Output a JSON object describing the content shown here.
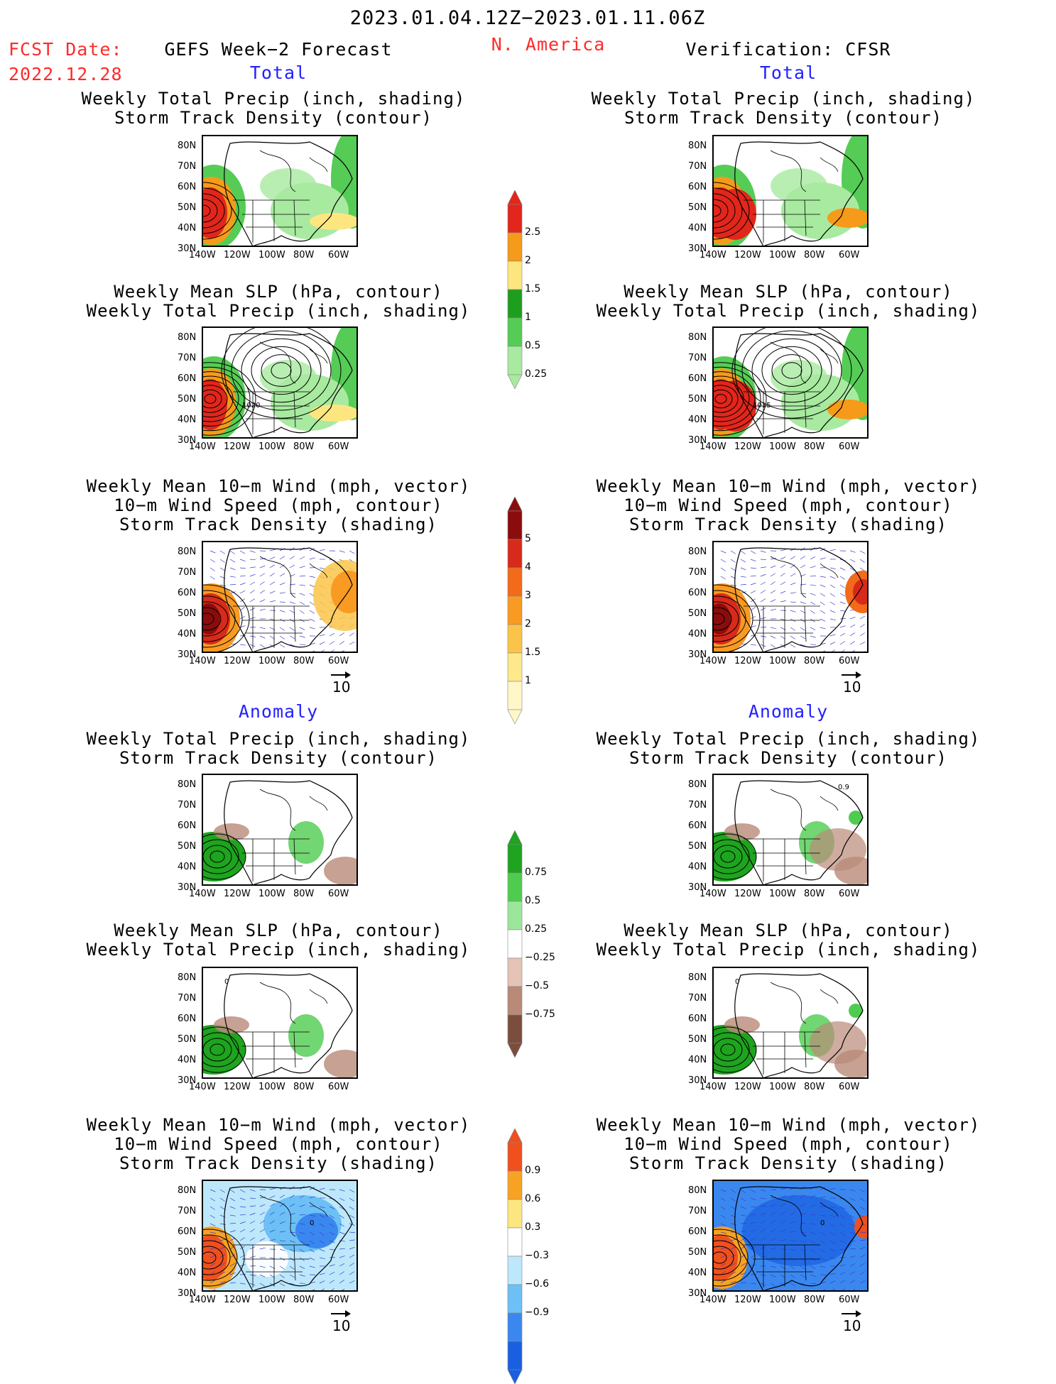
{
  "header": {
    "date_range": "2023.01.04.12Z−2023.01.11.06Z",
    "fcst_label": "FCST Date:",
    "fcst_date": "2022.12.28",
    "model": "GEFS Week−2 Forecast",
    "region": "N. America",
    "verification": "Verification: CFSR"
  },
  "sections": {
    "total": "Total",
    "anomaly": "Anomaly"
  },
  "panel_titles": {
    "precip_track": "Weekly Total Precip (inch, shading)\nStorm Track Density (contour)",
    "slp_precip": "Weekly Mean SLP (hPa, contour)\nWeekly Total Precip (inch, shading)",
    "wind_track": "Weekly Mean 10−m Wind (mph, vector)\n10−m Wind Speed (mph, contour)\nStorm Track Density (shading)"
  },
  "axes": {
    "lat_ticks": [
      "80N",
      "70N",
      "60N",
      "50N",
      "40N",
      "30N"
    ],
    "lon_ticks": [
      "140W",
      "120W",
      "100W",
      "80W",
      "60W"
    ]
  },
  "vector_ref": "10",
  "contour_labels": {
    "fcst_slp": "1020",
    "cfsr_slp": "1015",
    "cfsr_anom_track": "0.9",
    "anom_slp": "0",
    "anom_wind": "0"
  },
  "colorbars": {
    "precip_total": {
      "labels": [
        "2.5",
        "2",
        "1.5",
        "1",
        "0.5",
        "0.25"
      ],
      "colors": [
        "#e2261b",
        "#f69a1a",
        "#fde680",
        "#1e9e1e",
        "#55cc55",
        "#a8eaa0"
      ]
    },
    "track_total": {
      "labels": [
        "5",
        "4",
        "3",
        "2",
        "1.5",
        "1"
      ],
      "colors": [
        "#8b0c0c",
        "#d72a1a",
        "#f26a1a",
        "#f99a22",
        "#fbc448",
        "#fde98c",
        "#fff7c8"
      ]
    },
    "precip_anom": {
      "labels": [
        "0.75",
        "0.5",
        "0.25",
        "−0.25",
        "−0.5",
        "−0.75"
      ],
      "colors": [
        "#1ea41e",
        "#4fcc4f",
        "#9be69b",
        "#ffffff",
        "#e5c3b5",
        "#b98a78",
        "#7a4e3e"
      ]
    },
    "track_anom": {
      "labels": [
        "0.9",
        "0.6",
        "0.3",
        "−0.3",
        "−0.6",
        "−0.9"
      ],
      "colors": [
        "#f0501e",
        "#f8a223",
        "#fde680",
        "#ffffff",
        "#bde8fb",
        "#6cc0f5",
        "#3a88ef",
        "#1a5fe0"
      ]
    }
  },
  "chart_data": [
    {
      "type": "heatmap",
      "column": "GEFS Week−2 Forecast",
      "section": "Total",
      "title": "Weekly Total Precip (inch, shading)\nStorm Track Density (contour)",
      "shading": "precip",
      "contour": "storm track density",
      "ylim": [
        "30N",
        "80N"
      ],
      "xlim": [
        "140W",
        "60W"
      ]
    },
    {
      "type": "heatmap",
      "column": "GEFS Week−2 Forecast",
      "section": "Total",
      "title": "Weekly Mean SLP (hPa, contour)\nWeekly Total Precip (inch, shading)",
      "shading": "precip",
      "contour": "SLP",
      "contour_label": "1020"
    },
    {
      "type": "heatmap",
      "column": "GEFS Week−2 Forecast",
      "section": "Total",
      "title": "Weekly Mean 10−m Wind (mph, vector)\n10−m Wind Speed (mph, contour)\nStorm Track Density (shading)",
      "shading": "storm track density",
      "vector_reference": "10"
    },
    {
      "type": "heatmap",
      "column": "GEFS Week−2 Forecast",
      "section": "Anomaly",
      "title": "Weekly Total Precip (inch, shading)\nStorm Track Density (contour)",
      "shading": "precip anomaly"
    },
    {
      "type": "heatmap",
      "column": "GEFS Week−2 Forecast",
      "section": "Anomaly",
      "title": "Weekly Mean SLP (hPa, contour)\nWeekly Total Precip (inch, shading)",
      "shading": "precip anomaly"
    },
    {
      "type": "heatmap",
      "column": "GEFS Week−2 Forecast",
      "section": "Anomaly",
      "title": "Weekly Mean 10−m Wind (mph, vector)\n10−m Wind Speed (mph, contour)\nStorm Track Density (shading)",
      "shading": "storm track density anomaly"
    },
    {
      "type": "heatmap",
      "column": "Verification: CFSR",
      "section": "Total",
      "title": "Weekly Total Precip (inch, shading)\nStorm Track Density (contour)",
      "shading": "precip"
    },
    {
      "type": "heatmap",
      "column": "Verification: CFSR",
      "section": "Total",
      "title": "Weekly Mean SLP (hPa, contour)\nWeekly Total Precip (inch, shading)",
      "shading": "precip",
      "contour_label": "1015"
    },
    {
      "type": "heatmap",
      "column": "Verification: CFSR",
      "section": "Total",
      "title": "Weekly Mean 10−m Wind (mph, vector)\n10−m Wind Speed (mph, contour)\nStorm Track Density (shading)",
      "shading": "storm track density"
    },
    {
      "type": "heatmap",
      "column": "Verification: CFSR",
      "section": "Anomaly",
      "title": "Weekly Total Precip (inch, shading)\nStorm Track Density (contour)",
      "shading": "precip anomaly",
      "contour_label": "0.9"
    },
    {
      "type": "heatmap",
      "column": "Verification: CFSR",
      "section": "Anomaly",
      "title": "Weekly Mean SLP (hPa, contour)\nWeekly Total Precip (inch, shading)",
      "shading": "precip anomaly"
    },
    {
      "type": "heatmap",
      "column": "Verification: CFSR",
      "section": "Anomaly",
      "title": "Weekly Mean 10−m Wind (mph, vector)\n10−m Wind Speed (mph, contour)\nStorm Track Density (shading)",
      "shading": "storm track density anomaly"
    }
  ]
}
